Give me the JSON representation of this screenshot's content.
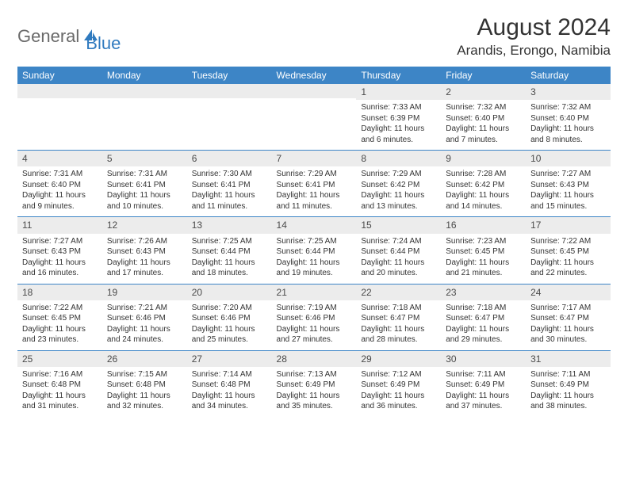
{
  "logo": {
    "text1": "General",
    "text2": "Blue"
  },
  "header": {
    "month_title": "August 2024",
    "location": "Arandis, Erongo, Namibia"
  },
  "colors": {
    "header_bg": "#3d85c6",
    "header_text": "#ffffff",
    "daynum_bg": "#ececec",
    "cell_border": "#3d85c6",
    "body_text": "#333333",
    "logo_gray": "#6a6a6a",
    "logo_blue": "#2f7abf"
  },
  "calendar": {
    "day_headers": [
      "Sunday",
      "Monday",
      "Tuesday",
      "Wednesday",
      "Thursday",
      "Friday",
      "Saturday"
    ],
    "weeks": [
      [
        {
          "n": "",
          "sr": "",
          "ss": "",
          "dl": ""
        },
        {
          "n": "",
          "sr": "",
          "ss": "",
          "dl": ""
        },
        {
          "n": "",
          "sr": "",
          "ss": "",
          "dl": ""
        },
        {
          "n": "",
          "sr": "",
          "ss": "",
          "dl": ""
        },
        {
          "n": "1",
          "sr": "Sunrise: 7:33 AM",
          "ss": "Sunset: 6:39 PM",
          "dl": "Daylight: 11 hours and 6 minutes."
        },
        {
          "n": "2",
          "sr": "Sunrise: 7:32 AM",
          "ss": "Sunset: 6:40 PM",
          "dl": "Daylight: 11 hours and 7 minutes."
        },
        {
          "n": "3",
          "sr": "Sunrise: 7:32 AM",
          "ss": "Sunset: 6:40 PM",
          "dl": "Daylight: 11 hours and 8 minutes."
        }
      ],
      [
        {
          "n": "4",
          "sr": "Sunrise: 7:31 AM",
          "ss": "Sunset: 6:40 PM",
          "dl": "Daylight: 11 hours and 9 minutes."
        },
        {
          "n": "5",
          "sr": "Sunrise: 7:31 AM",
          "ss": "Sunset: 6:41 PM",
          "dl": "Daylight: 11 hours and 10 minutes."
        },
        {
          "n": "6",
          "sr": "Sunrise: 7:30 AM",
          "ss": "Sunset: 6:41 PM",
          "dl": "Daylight: 11 hours and 11 minutes."
        },
        {
          "n": "7",
          "sr": "Sunrise: 7:29 AM",
          "ss": "Sunset: 6:41 PM",
          "dl": "Daylight: 11 hours and 11 minutes."
        },
        {
          "n": "8",
          "sr": "Sunrise: 7:29 AM",
          "ss": "Sunset: 6:42 PM",
          "dl": "Daylight: 11 hours and 13 minutes."
        },
        {
          "n": "9",
          "sr": "Sunrise: 7:28 AM",
          "ss": "Sunset: 6:42 PM",
          "dl": "Daylight: 11 hours and 14 minutes."
        },
        {
          "n": "10",
          "sr": "Sunrise: 7:27 AM",
          "ss": "Sunset: 6:43 PM",
          "dl": "Daylight: 11 hours and 15 minutes."
        }
      ],
      [
        {
          "n": "11",
          "sr": "Sunrise: 7:27 AM",
          "ss": "Sunset: 6:43 PM",
          "dl": "Daylight: 11 hours and 16 minutes."
        },
        {
          "n": "12",
          "sr": "Sunrise: 7:26 AM",
          "ss": "Sunset: 6:43 PM",
          "dl": "Daylight: 11 hours and 17 minutes."
        },
        {
          "n": "13",
          "sr": "Sunrise: 7:25 AM",
          "ss": "Sunset: 6:44 PM",
          "dl": "Daylight: 11 hours and 18 minutes."
        },
        {
          "n": "14",
          "sr": "Sunrise: 7:25 AM",
          "ss": "Sunset: 6:44 PM",
          "dl": "Daylight: 11 hours and 19 minutes."
        },
        {
          "n": "15",
          "sr": "Sunrise: 7:24 AM",
          "ss": "Sunset: 6:44 PM",
          "dl": "Daylight: 11 hours and 20 minutes."
        },
        {
          "n": "16",
          "sr": "Sunrise: 7:23 AM",
          "ss": "Sunset: 6:45 PM",
          "dl": "Daylight: 11 hours and 21 minutes."
        },
        {
          "n": "17",
          "sr": "Sunrise: 7:22 AM",
          "ss": "Sunset: 6:45 PM",
          "dl": "Daylight: 11 hours and 22 minutes."
        }
      ],
      [
        {
          "n": "18",
          "sr": "Sunrise: 7:22 AM",
          "ss": "Sunset: 6:45 PM",
          "dl": "Daylight: 11 hours and 23 minutes."
        },
        {
          "n": "19",
          "sr": "Sunrise: 7:21 AM",
          "ss": "Sunset: 6:46 PM",
          "dl": "Daylight: 11 hours and 24 minutes."
        },
        {
          "n": "20",
          "sr": "Sunrise: 7:20 AM",
          "ss": "Sunset: 6:46 PM",
          "dl": "Daylight: 11 hours and 25 minutes."
        },
        {
          "n": "21",
          "sr": "Sunrise: 7:19 AM",
          "ss": "Sunset: 6:46 PM",
          "dl": "Daylight: 11 hours and 27 minutes."
        },
        {
          "n": "22",
          "sr": "Sunrise: 7:18 AM",
          "ss": "Sunset: 6:47 PM",
          "dl": "Daylight: 11 hours and 28 minutes."
        },
        {
          "n": "23",
          "sr": "Sunrise: 7:18 AM",
          "ss": "Sunset: 6:47 PM",
          "dl": "Daylight: 11 hours and 29 minutes."
        },
        {
          "n": "24",
          "sr": "Sunrise: 7:17 AM",
          "ss": "Sunset: 6:47 PM",
          "dl": "Daylight: 11 hours and 30 minutes."
        }
      ],
      [
        {
          "n": "25",
          "sr": "Sunrise: 7:16 AM",
          "ss": "Sunset: 6:48 PM",
          "dl": "Daylight: 11 hours and 31 minutes."
        },
        {
          "n": "26",
          "sr": "Sunrise: 7:15 AM",
          "ss": "Sunset: 6:48 PM",
          "dl": "Daylight: 11 hours and 32 minutes."
        },
        {
          "n": "27",
          "sr": "Sunrise: 7:14 AM",
          "ss": "Sunset: 6:48 PM",
          "dl": "Daylight: 11 hours and 34 minutes."
        },
        {
          "n": "28",
          "sr": "Sunrise: 7:13 AM",
          "ss": "Sunset: 6:49 PM",
          "dl": "Daylight: 11 hours and 35 minutes."
        },
        {
          "n": "29",
          "sr": "Sunrise: 7:12 AM",
          "ss": "Sunset: 6:49 PM",
          "dl": "Daylight: 11 hours and 36 minutes."
        },
        {
          "n": "30",
          "sr": "Sunrise: 7:11 AM",
          "ss": "Sunset: 6:49 PM",
          "dl": "Daylight: 11 hours and 37 minutes."
        },
        {
          "n": "31",
          "sr": "Sunrise: 7:11 AM",
          "ss": "Sunset: 6:49 PM",
          "dl": "Daylight: 11 hours and 38 minutes."
        }
      ]
    ]
  }
}
